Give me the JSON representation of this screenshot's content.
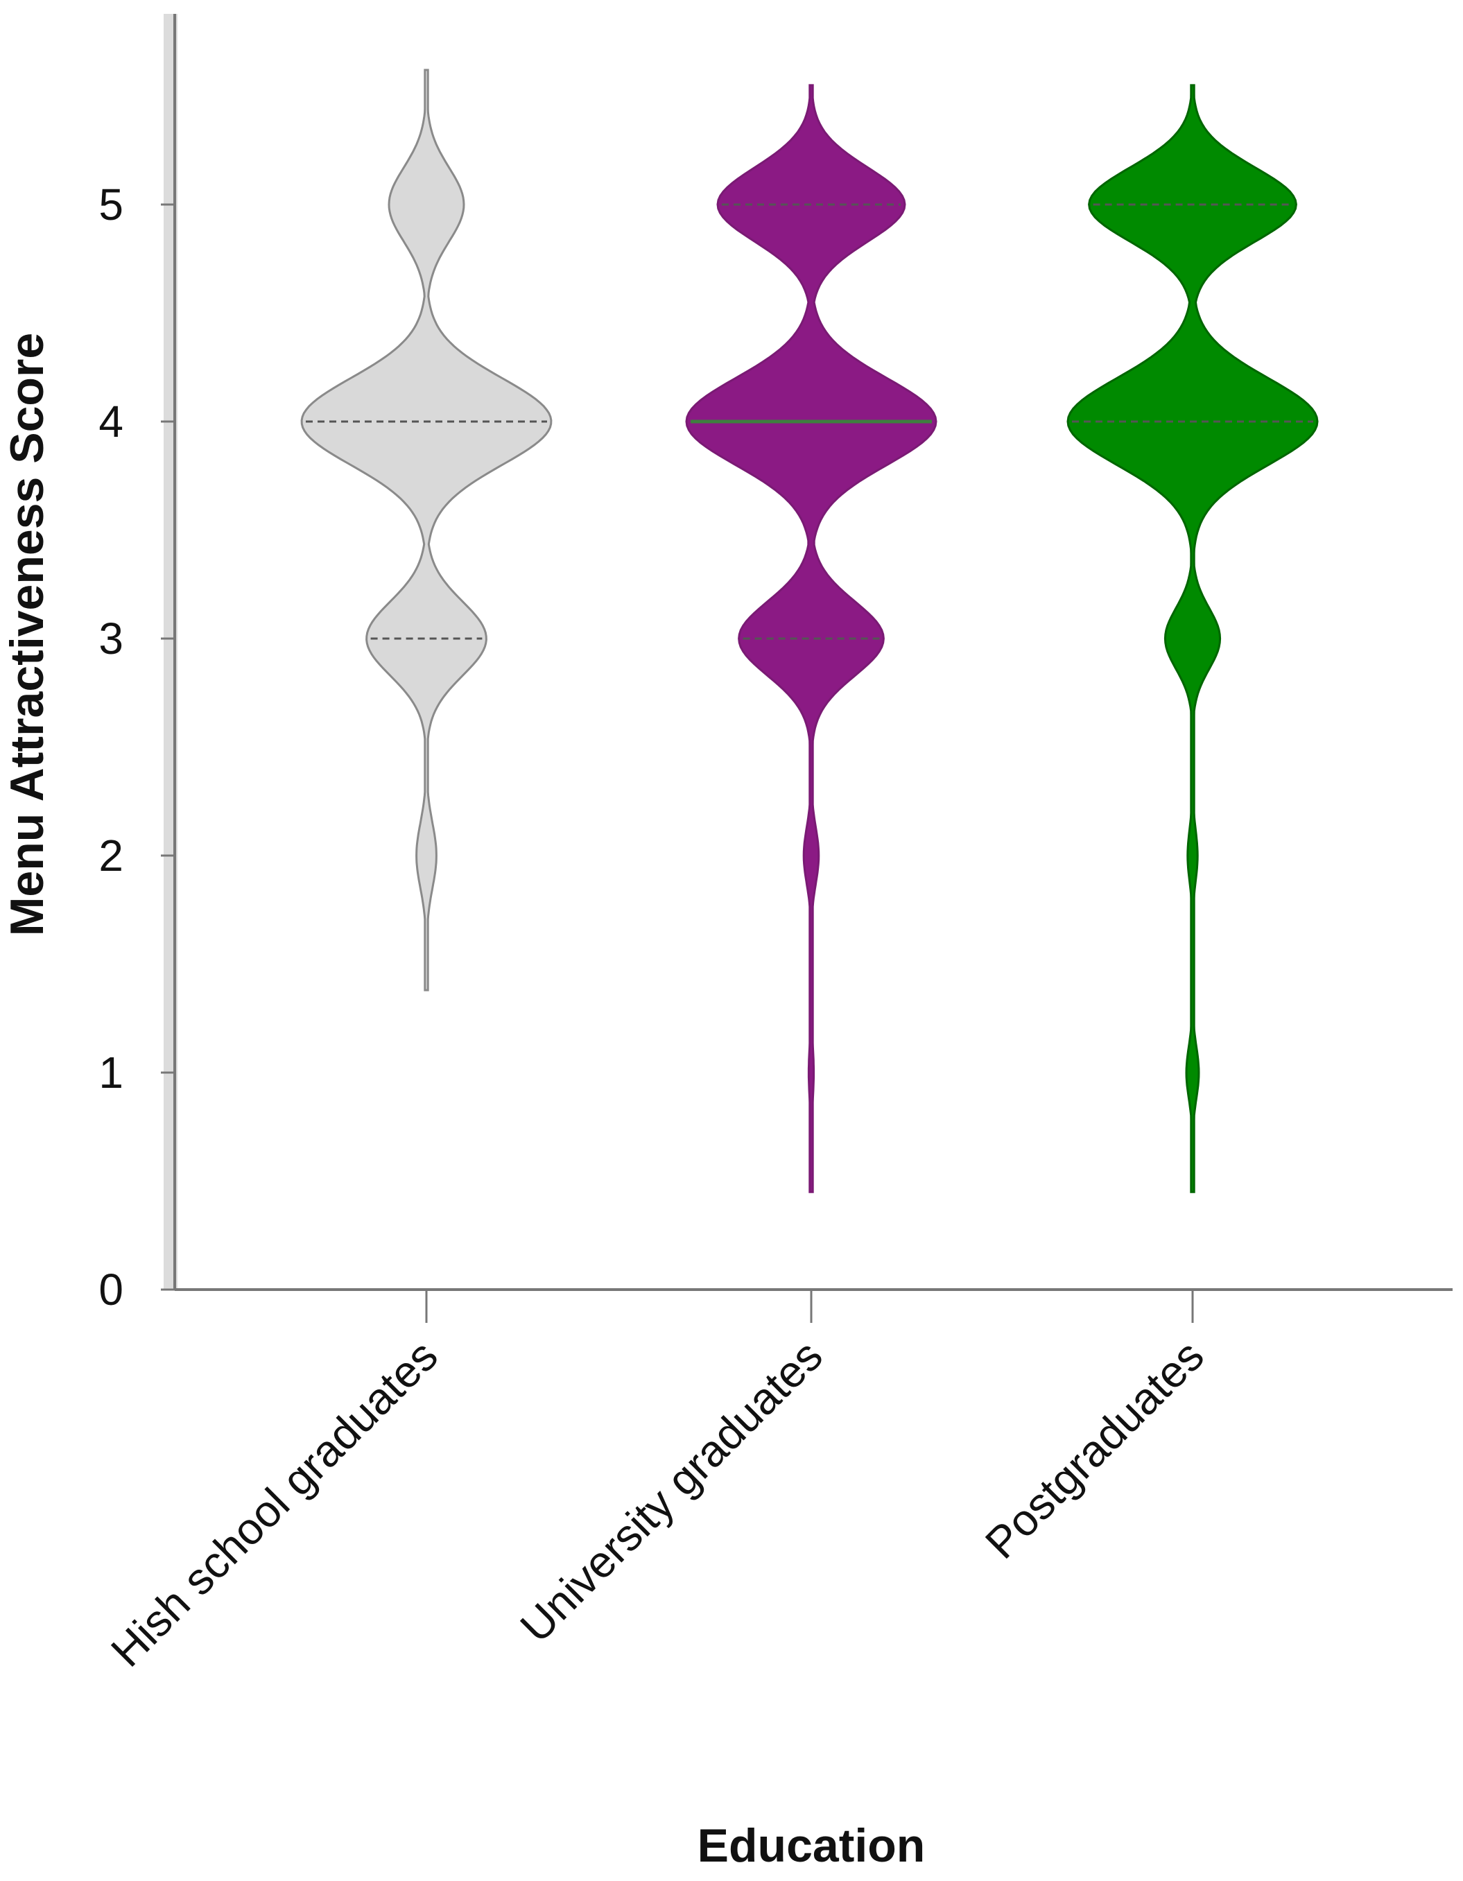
{
  "chart_data": {
    "type": "violin",
    "title": "",
    "xlabel": "Education",
    "ylabel": "Menu Attractiveness Score",
    "ylim": [
      0,
      5.8
    ],
    "yticks": [
      0,
      1,
      2,
      3,
      4,
      5
    ],
    "categories": [
      "Hish school graduates",
      "University graduates",
      "Postgraduates"
    ],
    "series": [
      {
        "name": "Hish school graduates",
        "color": "#d9d9d9",
        "edge": "#8a8a8a",
        "y_range": [
          1.38,
          5.62
        ],
        "modes": [
          {
            "y": 5.0,
            "half_width_frac": 0.3,
            "sd": 0.17
          },
          {
            "y": 4.0,
            "half_width_frac": 1.0,
            "sd": 0.2
          },
          {
            "y": 3.0,
            "half_width_frac": 0.48,
            "sd": 0.17
          },
          {
            "y": 2.0,
            "half_width_frac": 0.08,
            "sd": 0.15
          }
        ],
        "quartile_lines": [
          {
            "y": 3.0,
            "style": "dashed"
          },
          {
            "y": 4.0,
            "style": "dashed"
          }
        ]
      },
      {
        "name": "University graduates",
        "color": "#8b1a84",
        "edge": "#7a1a74",
        "y_range": [
          0.45,
          5.55
        ],
        "modes": [
          {
            "y": 5.0,
            "half_width_frac": 0.75,
            "sd": 0.17
          },
          {
            "y": 4.0,
            "half_width_frac": 1.0,
            "sd": 0.2
          },
          {
            "y": 3.0,
            "half_width_frac": 0.58,
            "sd": 0.17
          },
          {
            "y": 2.0,
            "half_width_frac": 0.06,
            "sd": 0.13
          },
          {
            "y": 1.0,
            "half_width_frac": 0.02,
            "sd": 0.13
          }
        ],
        "quartile_lines": [
          {
            "y": 3.0,
            "style": "dashed"
          },
          {
            "y": 4.0,
            "style": "solid"
          },
          {
            "y": 5.0,
            "style": "dashed"
          }
        ]
      },
      {
        "name": "Postgraduates",
        "color": "#008a00",
        "edge": "#006600",
        "y_range": [
          0.45,
          5.55
        ],
        "modes": [
          {
            "y": 5.0,
            "half_width_frac": 0.83,
            "sd": 0.17
          },
          {
            "y": 4.0,
            "half_width_frac": 1.0,
            "sd": 0.2
          },
          {
            "y": 3.0,
            "half_width_frac": 0.22,
            "sd": 0.14
          },
          {
            "y": 2.0,
            "half_width_frac": 0.04,
            "sd": 0.12
          },
          {
            "y": 1.0,
            "half_width_frac": 0.05,
            "sd": 0.12
          }
        ],
        "quartile_lines": [
          {
            "y": 4.0,
            "style": "dashed"
          },
          {
            "y": 5.0,
            "style": "dashed"
          }
        ]
      }
    ]
  }
}
